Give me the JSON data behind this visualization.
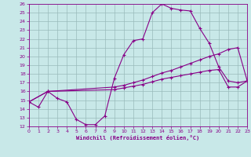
{
  "bg_color": "#c8e8e8",
  "line_color": "#880088",
  "grid_color": "#99bbbb",
  "xlabel": "Windchill (Refroidissement éolien,°C)",
  "xlim": [
    0,
    23
  ],
  "ylim": [
    12,
    26
  ],
  "xticks": [
    0,
    1,
    2,
    3,
    4,
    5,
    6,
    7,
    8,
    9,
    10,
    11,
    12,
    13,
    14,
    15,
    16,
    17,
    18,
    19,
    20,
    21,
    22,
    23
  ],
  "yticks": [
    12,
    13,
    14,
    15,
    16,
    17,
    18,
    19,
    20,
    21,
    22,
    23,
    24,
    25,
    26
  ],
  "s1_x": [
    0,
    1,
    2,
    3,
    4,
    5,
    6,
    7,
    8,
    9,
    10,
    11,
    12,
    13,
    14,
    15,
    16,
    17,
    18,
    19,
    20,
    21,
    22,
    23
  ],
  "s1_y": [
    14.8,
    14.2,
    16.0,
    15.2,
    14.8,
    12.8,
    12.2,
    12.2,
    13.2,
    17.5,
    20.2,
    21.8,
    22.0,
    25.0,
    26.0,
    25.5,
    25.3,
    25.2,
    23.2,
    21.5,
    18.8,
    17.2,
    17.0,
    17.2
  ],
  "s2_x": [
    0,
    2,
    9,
    10,
    11,
    12,
    13,
    14,
    15,
    16,
    17,
    18,
    19,
    20,
    21,
    22,
    23
  ],
  "s2_y": [
    14.8,
    16.0,
    16.5,
    16.7,
    17.0,
    17.3,
    17.7,
    18.1,
    18.4,
    18.8,
    19.2,
    19.6,
    20.0,
    20.3,
    20.8,
    21.0,
    17.2
  ],
  "s3_x": [
    0,
    2,
    9,
    10,
    11,
    12,
    13,
    14,
    15,
    16,
    17,
    18,
    19,
    20,
    21,
    22,
    23
  ],
  "s3_y": [
    14.8,
    16.0,
    16.2,
    16.4,
    16.6,
    16.8,
    17.1,
    17.4,
    17.6,
    17.8,
    18.0,
    18.2,
    18.4,
    18.5,
    16.5,
    16.5,
    17.2
  ]
}
